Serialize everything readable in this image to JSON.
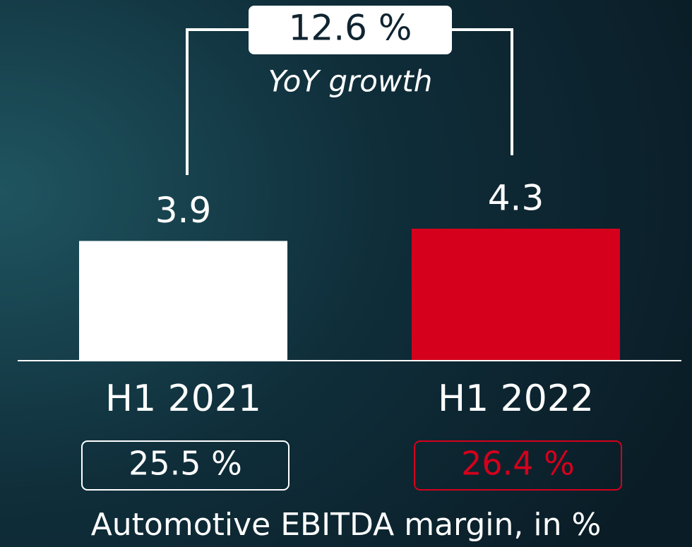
{
  "chart_data": {
    "type": "bar",
    "categories": [
      "H1 2021",
      "H1 2022"
    ],
    "values": [
      3.9,
      4.3
    ],
    "colors": [
      "#ffffff",
      "#d5001c"
    ],
    "growth": 12.6,
    "growth_label": "12.6 %",
    "growth_annotation": "YoY growth",
    "margins": [
      25.5,
      26.4
    ],
    "margin_labels": [
      "25.5 %",
      "26.4 %"
    ],
    "footer": "Automotive EBITDA margin, in %"
  }
}
